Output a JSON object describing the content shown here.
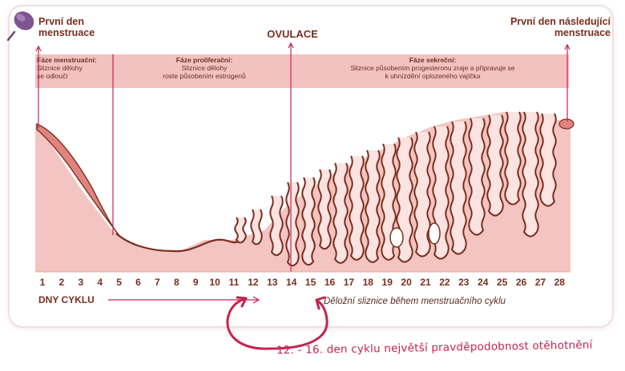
{
  "header": {
    "first_day_line1": "První den",
    "first_day_line2": "menstruace",
    "ovulation": "OVULACE",
    "next_first_day_line1": "První den následující",
    "next_first_day_line2": "menstruace"
  },
  "phases": [
    {
      "title": "Fáze menstruační:",
      "line1": "Sliznice dělohy",
      "line2": "se odloučí"
    },
    {
      "title": "Fáze proliferační:",
      "line1": "Sliznice dělohy",
      "line2": "roste působením estrogenů"
    },
    {
      "title": "Fáze sekreční:",
      "line1": "Sliznice působením progesteronu zraje a připravuje se",
      "line2": "k uhnízdění oplozeného vajíčka"
    }
  ],
  "days": [
    "1",
    "2",
    "3",
    "4",
    "5",
    "6",
    "7",
    "8",
    "9",
    "10",
    "11",
    "12",
    "13",
    "14",
    "15",
    "16",
    "17",
    "18",
    "19",
    "20",
    "21",
    "22",
    "23",
    "24",
    "25",
    "26",
    "27",
    "28"
  ],
  "days_title": "DNY CYKLU",
  "caption": "Děložní sliznice během menstruačního cyklu",
  "note": "12. - 16. den cyklu největší pravděpodobnost otěhotnění",
  "colors": {
    "tissue": "#f3c4c1",
    "outline": "#7a2e1e",
    "band": "#f3c1bf",
    "accent": "#c6234f",
    "menstruation": "#e0837f"
  }
}
